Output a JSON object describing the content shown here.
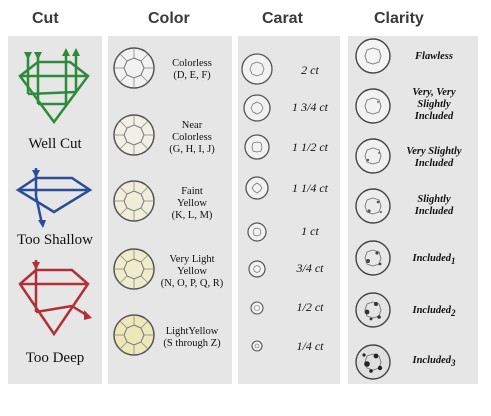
{
  "headers": {
    "cut": "Cut",
    "color": "Color",
    "carat": "Carat",
    "clarity": "Clarity"
  },
  "cut": [
    {
      "label": "Well Cut",
      "color": "#2e8b3c"
    },
    {
      "label": "Too Shallow",
      "color": "#2a4c9a"
    },
    {
      "label": "Too Deep",
      "color": "#b03036"
    }
  ],
  "color": [
    {
      "line1": "Colorless",
      "line2": "(D, E, F)",
      "line3": "",
      "tint": "#f2f2f2"
    },
    {
      "line1": "Near",
      "line2": "Colorless",
      "line3": "(G, H, I, J)",
      "tint": "#f1f0e6"
    },
    {
      "line1": "Faint",
      "line2": "Yellow",
      "line3": "(K, L, M)",
      "tint": "#f0eed8"
    },
    {
      "line1": "Very Light",
      "line2": "Yellow",
      "line3": "(N, O, P, Q, R)",
      "tint": "#efeccb"
    },
    {
      "line1": "LightYellow",
      "line2": "(S through Z)",
      "line3": "",
      "tint": "#eee8b8"
    }
  ],
  "carat": [
    {
      "label": "2 ct"
    },
    {
      "label": "1 3/4 ct"
    },
    {
      "label": "1 1/2 ct"
    },
    {
      "label": "1 1/4 ct"
    },
    {
      "label": "1 ct"
    },
    {
      "label": "3/4 ct"
    },
    {
      "label": "1/2 ct"
    },
    {
      "label": "1/4 ct"
    }
  ],
  "clarity": [
    {
      "line1": "Flawless",
      "line2": "",
      "line3": "",
      "sub": ""
    },
    {
      "line1": "Very, Very",
      "line2": "Slightly",
      "line3": "Included",
      "sub": ""
    },
    {
      "line1": "Very Slightly",
      "line2": "Included",
      "line3": "",
      "sub": ""
    },
    {
      "line1": "Slightly",
      "line2": "Included",
      "line3": "",
      "sub": ""
    },
    {
      "line1": "Included",
      "line2": "",
      "line3": "",
      "sub": "1"
    },
    {
      "line1": "Included",
      "line2": "",
      "line3": "",
      "sub": "2"
    },
    {
      "line1": "Included",
      "line2": "",
      "line3": "",
      "sub": "3"
    }
  ]
}
